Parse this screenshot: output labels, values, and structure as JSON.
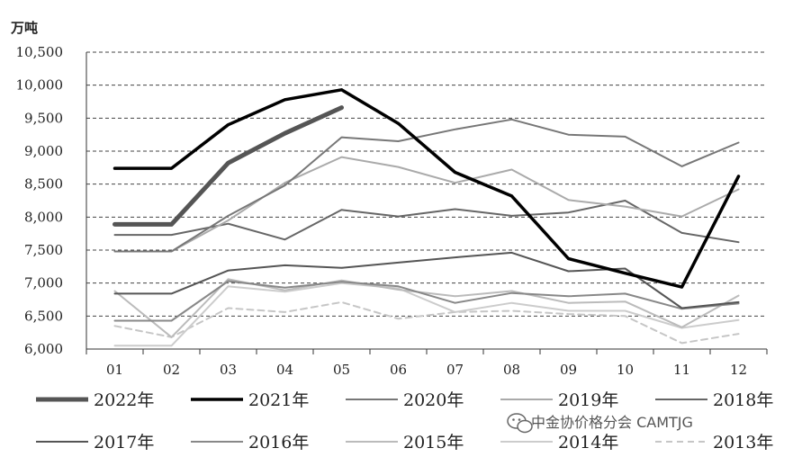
{
  "chart_data": {
    "type": "line",
    "unit_label": "万吨",
    "categories": [
      "01",
      "02",
      "03",
      "04",
      "05",
      "06",
      "07",
      "08",
      "09",
      "10",
      "11",
      "12"
    ],
    "ylim": [
      6000,
      10500
    ],
    "y_ticks": [
      6000,
      6500,
      7000,
      7500,
      8000,
      8500,
      9000,
      9500,
      10000,
      10500
    ],
    "y_tick_labels": [
      "6,000",
      "6,500",
      "7,000",
      "7,500",
      "8,000",
      "8,500",
      "9,000",
      "9,500",
      "10,000",
      "10,500"
    ],
    "grid": "horizontal-dashed",
    "legend_position": "bottom",
    "series": [
      {
        "name": "2022年",
        "color": "#555555",
        "width": 5,
        "dash": "",
        "values": [
          7890,
          7890,
          8820,
          9270,
          9660,
          null,
          null,
          null,
          null,
          null,
          null,
          null
        ]
      },
      {
        "name": "2021年",
        "color": "#000000",
        "width": 3.5,
        "dash": "",
        "values": [
          8740,
          8740,
          9400,
          9780,
          9930,
          9420,
          8680,
          8320,
          7370,
          7150,
          6940,
          8620
        ]
      },
      {
        "name": "2020年",
        "color": "#777777",
        "width": 2,
        "dash": "",
        "values": [
          7480,
          7480,
          8020,
          8480,
          9210,
          9150,
          9330,
          9480,
          9250,
          9220,
          8770,
          9130
        ]
      },
      {
        "name": "2019年",
        "color": "#aaaaaa",
        "width": 2,
        "dash": "",
        "values": [
          7480,
          7480,
          7950,
          8520,
          8910,
          8760,
          8520,
          8720,
          8260,
          8160,
          8010,
          8420
        ]
      },
      {
        "name": "2018年",
        "color": "#666666",
        "width": 2,
        "dash": "",
        "values": [
          7730,
          7730,
          7900,
          7660,
          8110,
          8010,
          8120,
          8020,
          8070,
          8250,
          7760,
          7620
        ]
      },
      {
        "name": "2017年",
        "color": "#555555",
        "width": 2,
        "dash": "",
        "values": [
          6840,
          6840,
          7190,
          7270,
          7230,
          7310,
          7390,
          7460,
          7180,
          7220,
          6620,
          6710
        ]
      },
      {
        "name": "2016年",
        "color": "#888888",
        "width": 2,
        "dash": "",
        "values": [
          6430,
          6430,
          7030,
          6930,
          7020,
          6950,
          6700,
          6850,
          6800,
          6840,
          6610,
          6690
        ]
      },
      {
        "name": "2015年",
        "color": "#bbbbbb",
        "width": 2,
        "dash": "",
        "values": [
          6880,
          6180,
          7060,
          6890,
          7040,
          6900,
          6800,
          6880,
          6700,
          6720,
          6330,
          6810
        ]
      },
      {
        "name": "2014年",
        "color": "#cccccc",
        "width": 2,
        "dash": "",
        "values": [
          6050,
          6050,
          6950,
          6870,
          7000,
          6920,
          6560,
          6700,
          6580,
          6580,
          6320,
          6440
        ]
      },
      {
        "name": "2013年",
        "color": "#c6c6c6",
        "width": 2,
        "dash": "7,5",
        "values": [
          6350,
          6180,
          6620,
          6560,
          6710,
          6460,
          6560,
          6580,
          6530,
          6500,
          6090,
          6230
        ]
      }
    ]
  },
  "watermark": {
    "text": "中金协价格分会 CAMTJG",
    "icon": "wechat-icon"
  }
}
